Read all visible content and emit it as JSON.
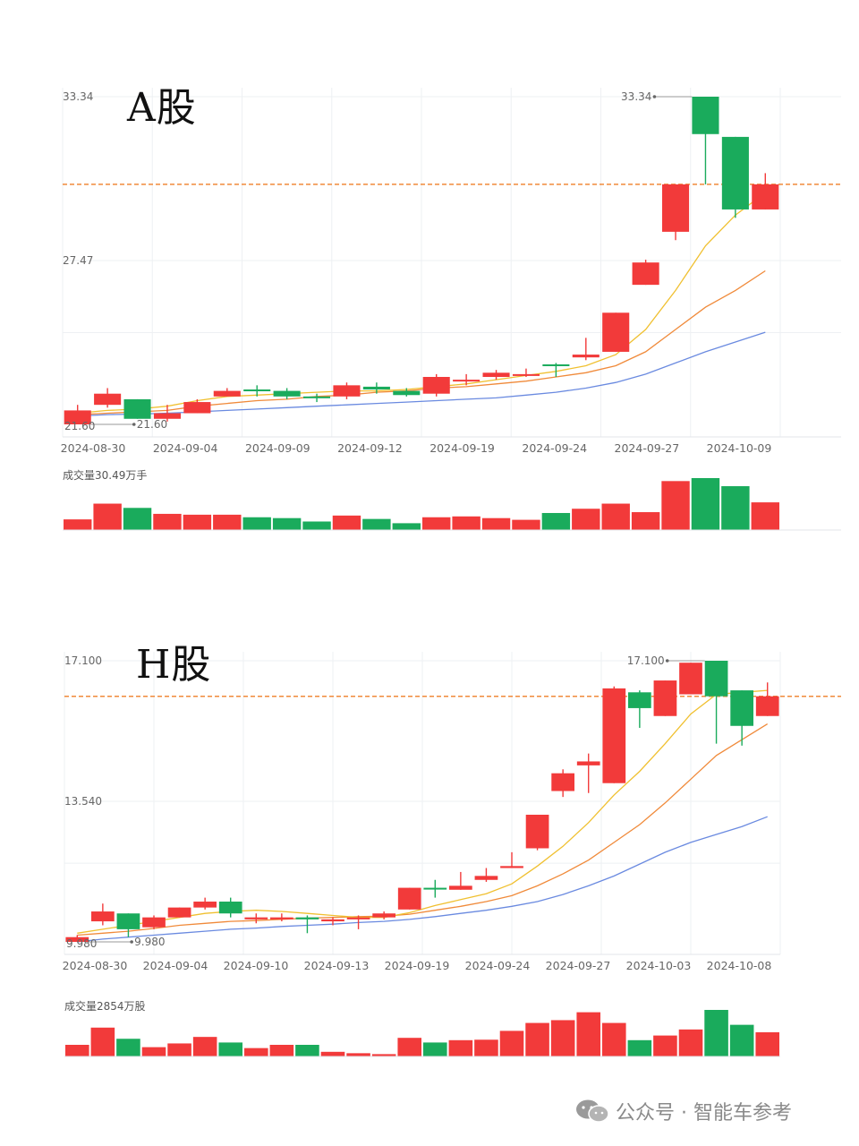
{
  "charts": [
    {
      "id": "a",
      "title": "A股",
      "volume_label": "成交量30.49万手",
      "y_max_label": "33.34",
      "y_mid_label": "27.47",
      "low_label": "21.60",
      "high_tag": "33.34",
      "low_tag": "21.60",
      "x_labels": [
        "2024-08-30",
        "2024-09-04",
        "2024-09-09",
        "2024-09-12",
        "2024-09-19",
        "2024-09-24",
        "2024-09-27",
        "2024-10-09"
      ]
    },
    {
      "id": "h",
      "title": "H股",
      "volume_label": "成交量2854万股",
      "y_max_label": "17.100",
      "y_mid_label": "13.540",
      "low_label": "9.980",
      "high_tag": "17.100",
      "low_tag": "9.980",
      "x_labels": [
        "2024-08-30",
        "2024-09-04",
        "2024-09-10",
        "2024-09-13",
        "2024-09-19",
        "2024-09-24",
        "2024-09-27",
        "2024-10-03",
        "2024-10-08"
      ]
    }
  ],
  "chart_data": [
    {
      "type": "candlestick",
      "title": "A股",
      "ylim": [
        21.6,
        33.34
      ],
      "yticks": [
        33.34,
        27.47
      ],
      "reference_price": 30.2,
      "volume_label": "成交量30.49万手",
      "colors": {
        "up": "#f23a3a",
        "down": "#1aab5c",
        "ma5": "#f0c030",
        "ma10": "#f08a3a",
        "ma20": "#6a8ae0",
        "ref": "#f08a3a"
      },
      "candles": [
        {
          "o": 21.6,
          "c": 22.1,
          "h": 22.3,
          "l": 21.6,
          "up": true
        },
        {
          "o": 22.3,
          "c": 22.7,
          "h": 22.9,
          "l": 22.2,
          "up": true
        },
        {
          "o": 22.5,
          "c": 21.8,
          "h": 22.5,
          "l": 21.8,
          "up": false
        },
        {
          "o": 21.8,
          "c": 22.0,
          "h": 22.3,
          "l": 21.7,
          "up": true
        },
        {
          "o": 22.0,
          "c": 22.4,
          "h": 22.5,
          "l": 22.0,
          "up": true
        },
        {
          "o": 22.6,
          "c": 22.8,
          "h": 22.9,
          "l": 22.6,
          "up": true
        },
        {
          "o": 22.85,
          "c": 22.8,
          "h": 23.0,
          "l": 22.6,
          "up": false
        },
        {
          "o": 22.8,
          "c": 22.6,
          "h": 22.9,
          "l": 22.5,
          "up": false
        },
        {
          "o": 22.6,
          "c": 22.6,
          "h": 22.7,
          "l": 22.4,
          "up": false
        },
        {
          "o": 22.6,
          "c": 23.0,
          "h": 23.1,
          "l": 22.5,
          "up": true
        },
        {
          "o": 22.95,
          "c": 22.85,
          "h": 23.1,
          "l": 22.7,
          "up": false
        },
        {
          "o": 22.8,
          "c": 22.65,
          "h": 22.9,
          "l": 22.6,
          "up": false
        },
        {
          "o": 22.7,
          "c": 23.3,
          "h": 23.4,
          "l": 22.6,
          "up": true
        },
        {
          "o": 23.2,
          "c": 23.2,
          "h": 23.4,
          "l": 23.0,
          "up": true
        },
        {
          "o": 23.3,
          "c": 23.45,
          "h": 23.55,
          "l": 23.2,
          "up": true
        },
        {
          "o": 23.4,
          "c": 23.4,
          "h": 23.6,
          "l": 23.3,
          "up": true
        },
        {
          "o": 23.75,
          "c": 23.7,
          "h": 23.8,
          "l": 23.3,
          "up": false
        },
        {
          "o": 24.0,
          "c": 24.1,
          "h": 24.7,
          "l": 23.9,
          "up": true
        },
        {
          "o": 24.2,
          "c": 25.6,
          "h": 25.6,
          "l": 24.2,
          "up": true
        },
        {
          "o": 26.6,
          "c": 27.4,
          "h": 27.5,
          "l": 26.6,
          "up": true
        },
        {
          "o": 28.5,
          "c": 30.2,
          "h": 30.2,
          "l": 28.2,
          "up": true
        },
        {
          "o": 33.34,
          "c": 32.0,
          "h": 33.34,
          "l": 30.2,
          "up": false
        },
        {
          "o": 31.9,
          "c": 29.3,
          "h": 31.9,
          "l": 29.0,
          "up": false
        },
        {
          "o": 29.3,
          "c": 30.2,
          "h": 30.6,
          "l": 29.3,
          "up": true
        }
      ],
      "ma5": [
        22.0,
        22.1,
        22.15,
        22.25,
        22.45,
        22.6,
        22.65,
        22.7,
        22.75,
        22.8,
        22.8,
        22.85,
        22.95,
        23.05,
        23.2,
        23.35,
        23.5,
        23.7,
        24.1,
        25.0,
        26.4,
        28.0,
        29.1,
        29.9
      ],
      "ma10": [
        21.95,
        22.0,
        22.05,
        22.1,
        22.25,
        22.35,
        22.45,
        22.5,
        22.6,
        22.65,
        22.75,
        22.8,
        22.9,
        22.95,
        23.05,
        23.15,
        23.3,
        23.45,
        23.7,
        24.2,
        25.0,
        25.8,
        26.4,
        27.1
      ],
      "ma20": [
        21.9,
        21.95,
        21.97,
        22.0,
        22.05,
        22.1,
        22.15,
        22.2,
        22.25,
        22.3,
        22.35,
        22.4,
        22.45,
        22.5,
        22.55,
        22.65,
        22.75,
        22.9,
        23.1,
        23.4,
        23.8,
        24.2,
        24.55,
        24.9
      ],
      "volumes": [
        0.25,
        0.62,
        0.52,
        0.38,
        0.36,
        0.36,
        0.3,
        0.28,
        0.2,
        0.34,
        0.26,
        0.16,
        0.3,
        0.32,
        0.28,
        0.24,
        0.4,
        0.5,
        0.62,
        0.42,
        1.15,
        1.22,
        1.03,
        0.65
      ]
    },
    {
      "type": "candlestick",
      "title": "H股",
      "ylim": [
        9.98,
        17.1
      ],
      "yticks": [
        17.1,
        13.54
      ],
      "reference_price": 16.2,
      "volume_label": "成交量2854万股",
      "colors": {
        "up": "#f23a3a",
        "down": "#1aab5c",
        "ma5": "#f0c030",
        "ma10": "#f08a3a",
        "ma20": "#6a8ae0",
        "ref": "#f08a3a"
      },
      "candles": [
        {
          "o": 9.98,
          "c": 10.1,
          "h": 10.15,
          "l": 9.98,
          "up": true
        },
        {
          "o": 10.5,
          "c": 10.75,
          "h": 10.95,
          "l": 10.4,
          "up": true
        },
        {
          "o": 10.7,
          "c": 10.3,
          "h": 10.7,
          "l": 10.1,
          "up": false
        },
        {
          "o": 10.35,
          "c": 10.6,
          "h": 10.65,
          "l": 10.3,
          "up": true
        },
        {
          "o": 10.6,
          "c": 10.85,
          "h": 10.85,
          "l": 10.6,
          "up": true
        },
        {
          "o": 10.85,
          "c": 11.0,
          "h": 11.1,
          "l": 10.8,
          "up": true
        },
        {
          "o": 11.0,
          "c": 10.7,
          "h": 11.1,
          "l": 10.6,
          "up": false
        },
        {
          "o": 10.55,
          "c": 10.6,
          "h": 10.7,
          "l": 10.45,
          "up": true
        },
        {
          "o": 10.55,
          "c": 10.6,
          "h": 10.7,
          "l": 10.5,
          "up": true
        },
        {
          "o": 10.6,
          "c": 10.55,
          "h": 10.65,
          "l": 10.2,
          "up": false
        },
        {
          "o": 10.5,
          "c": 10.55,
          "h": 10.6,
          "l": 10.4,
          "up": true
        },
        {
          "o": 10.55,
          "c": 10.6,
          "h": 10.65,
          "l": 10.3,
          "up": true
        },
        {
          "o": 10.6,
          "c": 10.7,
          "h": 10.75,
          "l": 10.55,
          "up": true
        },
        {
          "o": 10.8,
          "c": 11.35,
          "h": 11.35,
          "l": 10.8,
          "up": true
        },
        {
          "o": 11.35,
          "c": 11.35,
          "h": 11.55,
          "l": 11.1,
          "up": false
        },
        {
          "o": 11.3,
          "c": 11.4,
          "h": 11.75,
          "l": 11.3,
          "up": true
        },
        {
          "o": 11.55,
          "c": 11.65,
          "h": 11.85,
          "l": 11.5,
          "up": true
        },
        {
          "o": 11.85,
          "c": 11.9,
          "h": 12.25,
          "l": 11.85,
          "up": true
        },
        {
          "o": 12.35,
          "c": 13.2,
          "h": 13.2,
          "l": 12.3,
          "up": true
        },
        {
          "o": 13.8,
          "c": 14.25,
          "h": 14.35,
          "l": 13.65,
          "up": true
        },
        {
          "o": 14.45,
          "c": 14.55,
          "h": 14.75,
          "l": 13.75,
          "up": true
        },
        {
          "o": 14.0,
          "c": 16.4,
          "h": 16.45,
          "l": 14.0,
          "up": true
        },
        {
          "o": 16.3,
          "c": 15.9,
          "h": 16.35,
          "l": 15.4,
          "up": false
        },
        {
          "o": 15.7,
          "c": 16.6,
          "h": 16.6,
          "l": 15.7,
          "up": true
        },
        {
          "o": 16.25,
          "c": 17.05,
          "h": 17.05,
          "l": 16.25,
          "up": true
        },
        {
          "o": 17.1,
          "c": 16.2,
          "h": 17.1,
          "l": 15.0,
          "up": false
        },
        {
          "o": 16.35,
          "c": 15.45,
          "h": 16.35,
          "l": 14.95,
          "up": false
        },
        {
          "o": 15.7,
          "c": 16.2,
          "h": 16.55,
          "l": 15.7,
          "up": true
        }
      ],
      "ma5": [
        10.2,
        10.3,
        10.4,
        10.5,
        10.6,
        10.7,
        10.75,
        10.78,
        10.75,
        10.7,
        10.65,
        10.6,
        10.6,
        10.72,
        10.9,
        11.05,
        11.2,
        11.45,
        11.9,
        12.4,
        13.0,
        13.7,
        14.3,
        15.0,
        15.75,
        16.25,
        16.3,
        16.35
      ],
      "ma10": [
        10.15,
        10.2,
        10.25,
        10.32,
        10.4,
        10.45,
        10.5,
        10.52,
        10.55,
        10.58,
        10.6,
        10.62,
        10.63,
        10.68,
        10.78,
        10.88,
        11.0,
        11.15,
        11.4,
        11.7,
        12.05,
        12.5,
        12.95,
        13.5,
        14.1,
        14.7,
        15.1,
        15.5
      ],
      "ma20": [
        9.98,
        10.05,
        10.1,
        10.15,
        10.2,
        10.25,
        10.3,
        10.33,
        10.37,
        10.4,
        10.43,
        10.47,
        10.5,
        10.55,
        10.62,
        10.7,
        10.78,
        10.88,
        11.0,
        11.18,
        11.4,
        11.65,
        11.95,
        12.25,
        12.5,
        12.7,
        12.9,
        13.15
      ],
      "volumes": [
        0.25,
        0.62,
        0.38,
        0.2,
        0.28,
        0.42,
        0.3,
        0.18,
        0.25,
        0.25,
        0.1,
        0.07,
        0.05,
        0.4,
        0.3,
        0.35,
        0.36,
        0.55,
        0.72,
        0.78,
        0.95,
        0.72,
        0.35,
        0.45,
        0.58,
        1.0,
        0.68,
        0.52
      ]
    }
  ],
  "footer": {
    "icon": "wechat-icon",
    "text": "公众号 · 智能车参考"
  }
}
